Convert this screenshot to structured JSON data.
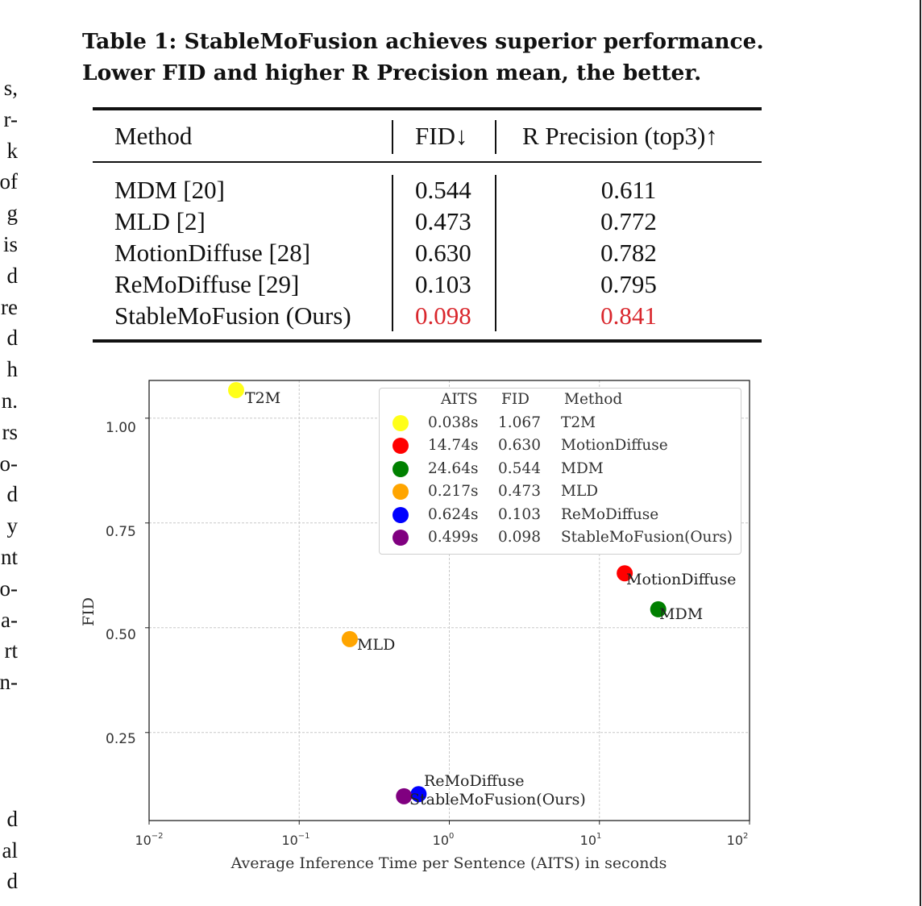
{
  "left_margin_text": [
    "s,",
    "r-",
    "k",
    "of",
    "g",
    "is",
    "d",
    "re",
    "d",
    "h",
    "n.",
    "rs",
    "o-",
    "d",
    "y",
    "nt",
    "o-",
    "a-",
    "rt",
    "n-",
    "d",
    "al",
    "d"
  ],
  "caption": {
    "line1": "Table 1: StableMoFusion achieves superior performance.",
    "line2": "Lower FID and higher R Precision mean, the better."
  },
  "table": {
    "headers": [
      "Method",
      "FID↓",
      "R Precision (top3)↑"
    ],
    "rows": [
      {
        "method": "MDM [20]",
        "fid": "0.544",
        "rprec": "0.611"
      },
      {
        "method": "MLD [2]",
        "fid": "0.473",
        "rprec": "0.772"
      },
      {
        "method": "MotionDiffuse [28]",
        "fid": "0.630",
        "rprec": "0.782"
      },
      {
        "method": "ReMoDiffuse [29]",
        "fid": "0.103",
        "rprec": "0.795"
      },
      {
        "method": "StableMoFusion (Ours)",
        "fid": "0.098",
        "rprec": "0.841"
      }
    ],
    "highlight_color": "#d9262c"
  },
  "chart_data": {
    "type": "scatter",
    "x_scale": "log",
    "xlabel": "Average Inference Time per Sentence (AITS) in seconds",
    "ylabel": "FID",
    "xlim": [
      0.01,
      100
    ],
    "ylim": [
      0.04,
      1.09
    ],
    "y_ticks": [
      "1.00",
      "0.75",
      "0.50",
      "0.25"
    ],
    "x_ticks": [
      {
        "base": "10",
        "exp": "−2"
      },
      {
        "base": "10",
        "exp": "−1"
      },
      {
        "base": "10",
        "exp": "0"
      },
      {
        "base": "10",
        "exp": "1"
      },
      {
        "base": "10",
        "exp": "2"
      }
    ],
    "grid": true,
    "legend_placement": "upper-right",
    "legend_headers": [
      "AITS",
      "FID",
      "Method"
    ],
    "points": [
      {
        "aits": 0.038,
        "aits_label": "0.038s",
        "fid": 1.067,
        "fid_label": "1.067",
        "name": "T2M",
        "color": "#ffff1a"
      },
      {
        "aits": 14.74,
        "aits_label": "14.74s",
        "fid": 0.63,
        "fid_label": "0.630",
        "name": "MotionDiffuse",
        "color": "#ff0000"
      },
      {
        "aits": 24.64,
        "aits_label": "24.64s",
        "fid": 0.544,
        "fid_label": "0.544",
        "name": "MDM",
        "color": "#008000"
      },
      {
        "aits": 0.217,
        "aits_label": "0.217s",
        "fid": 0.473,
        "fid_label": "0.473",
        "name": "MLD",
        "color": "#ffa500"
      },
      {
        "aits": 0.624,
        "aits_label": "0.624s",
        "fid": 0.103,
        "fid_label": "0.103",
        "name": "ReMoDiffuse",
        "color": "#0000ff"
      },
      {
        "aits": 0.499,
        "aits_label": "0.499s",
        "fid": 0.098,
        "fid_label": "0.098",
        "name": "StableMoFusion(Ours)",
        "color": "#800080"
      }
    ]
  }
}
